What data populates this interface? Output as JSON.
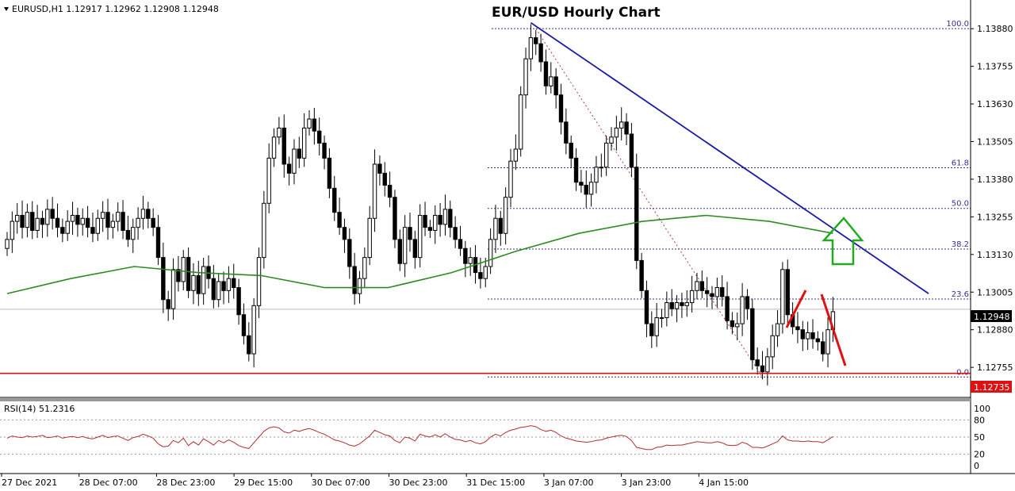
{
  "header": {
    "symbol_line": "EURUSD,H1  1.12917  1.12962  1.12908  1.12948",
    "triangle_icon": "triangle-down-icon"
  },
  "annotation_title": "EUR/USD Hourly Chart",
  "rsi_label": "RSI(14) 51.2316",
  "colors": {
    "candle": "#000000",
    "moving_average": "#2e8b22",
    "trendline": "#1a1aa8",
    "support_line": "#dd1111",
    "fib_line": "#33338a",
    "rsi_line": "#b03030",
    "up_arrow": "#22aa22",
    "red_path": "#dd1111"
  },
  "chart_data": [
    {
      "type": "candlestick",
      "title": "EUR/USD Hourly Chart",
      "symbol": "EURUSD",
      "timeframe": "H1",
      "ohlc_current": {
        "open": 1.12917,
        "high": 1.12962,
        "low": 1.12908,
        "close": 1.12948
      },
      "ylim": [
        1.127,
        1.1392
      ],
      "y_ticks": [
        "1.13880",
        "1.13755",
        "1.13630",
        "1.13505",
        "1.13380",
        "1.13255",
        "1.13130",
        "1.13005",
        "1.12880",
        "1.12755"
      ],
      "x_tick_labels": [
        "27 Dec 2021",
        "28 Dec 07:00",
        "28 Dec 23:00",
        "29 Dec 15:00",
        "30 Dec 07:00",
        "30 Dec 23:00",
        "31 Dec 15:00",
        "3 Jan 07:00",
        "3 Jan 23:00",
        "4 Jan 15:00"
      ],
      "current_price_label": "1.12948",
      "support_price_label": "1.12735",
      "close_series": [
        1.1318,
        1.1324,
        1.1326,
        1.1322,
        1.1327,
        1.1321,
        1.1325,
        1.1323,
        1.1328,
        1.1325,
        1.1322,
        1.132,
        1.1324,
        1.1326,
        1.1323,
        1.1325,
        1.1322,
        1.132,
        1.1325,
        1.1327,
        1.1322,
        1.1324,
        1.1327,
        1.1321,
        1.1318,
        1.1322,
        1.1325,
        1.1328,
        1.1325,
        1.1322,
        1.1312,
        1.1298,
        1.1295,
        1.1308,
        1.1304,
        1.1312,
        1.1301,
        1.1306,
        1.13,
        1.1309,
        1.1305,
        1.1298,
        1.1304,
        1.1301,
        1.1305,
        1.1302,
        1.1293,
        1.1286,
        1.128,
        1.1296,
        1.1312,
        1.133,
        1.1345,
        1.1352,
        1.1355,
        1.1343,
        1.134,
        1.1348,
        1.1345,
        1.1355,
        1.1358,
        1.1354,
        1.135,
        1.1345,
        1.1335,
        1.1327,
        1.1322,
        1.1318,
        1.1309,
        1.13,
        1.1305,
        1.1312,
        1.1325,
        1.1343,
        1.134,
        1.1336,
        1.1332,
        1.1318,
        1.131,
        1.1322,
        1.1318,
        1.1312,
        1.1326,
        1.1322,
        1.1321,
        1.1326,
        1.1323,
        1.1328,
        1.1322,
        1.1318,
        1.1315,
        1.131,
        1.1312,
        1.1307,
        1.1305,
        1.1309,
        1.1318,
        1.1325,
        1.132,
        1.1332,
        1.1344,
        1.1348,
        1.1366,
        1.1378,
        1.1385,
        1.1383,
        1.1377,
        1.1369,
        1.1372,
        1.1366,
        1.1357,
        1.135,
        1.1345,
        1.1337,
        1.1336,
        1.1333,
        1.1337,
        1.1342,
        1.1342,
        1.135,
        1.1352,
        1.1355,
        1.1357,
        1.1353,
        1.1342,
        1.1311,
        1.1301,
        1.129,
        1.1286,
        1.1292,
        1.1292,
        1.1297,
        1.1295,
        1.1297,
        1.1296,
        1.1297,
        1.1301,
        1.1304,
        1.1301,
        1.13,
        1.1299,
        1.1302,
        1.1299,
        1.1291,
        1.1289,
        1.129,
        1.1299,
        1.1295,
        1.1278,
        1.1276,
        1.1274,
        1.1279,
        1.1286,
        1.129,
        1.1308,
        1.1293,
        1.1289,
        1.1288,
        1.1285,
        1.1287,
        1.1285,
        1.1284,
        1.128,
        1.1288,
        1.1294
      ],
      "moving_average_series": [
        1.13,
        1.1305,
        1.1309,
        1.1307,
        1.1306,
        1.1302,
        1.1302,
        1.1307,
        1.1314,
        1.132,
        1.1324,
        1.1326,
        1.1324,
        1.132
      ],
      "trendline": {
        "start": [
          104,
          1.139
        ],
        "end": [
          183,
          1.13
        ]
      },
      "fibonacci": [
        {
          "level": "100.0",
          "price": 1.1388
        },
        {
          "level": "61.8",
          "price": 1.13418
        },
        {
          "level": "50.0",
          "price": 1.13283
        },
        {
          "level": "38.2",
          "price": 1.13148
        },
        {
          "level": "23.6",
          "price": 1.12982
        },
        {
          "level": "0.0",
          "price": 1.12723
        }
      ]
    },
    {
      "type": "line",
      "title": "RSI(14) 51.2316",
      "ylim": [
        0,
        100
      ],
      "y_ticks": [
        "100",
        "80",
        "50",
        "20",
        "0"
      ],
      "values": [
        48,
        52,
        50,
        49,
        52,
        50,
        51,
        53,
        49,
        50,
        52,
        48,
        50,
        51,
        49,
        51,
        48,
        47,
        50,
        53,
        49,
        51,
        52,
        48,
        44,
        49,
        51,
        55,
        52,
        48,
        38,
        33,
        34,
        44,
        40,
        48,
        35,
        42,
        36,
        47,
        42,
        36,
        44,
        40,
        45,
        41,
        35,
        32,
        30,
        40,
        50,
        60,
        66,
        68,
        66,
        59,
        57,
        62,
        60,
        63,
        65,
        62,
        58,
        55,
        50,
        45,
        43,
        40,
        36,
        34,
        38,
        45,
        52,
        62,
        58,
        54,
        52,
        44,
        40,
        50,
        48,
        43,
        55,
        52,
        50,
        54,
        50,
        56,
        50,
        46,
        45,
        42,
        44,
        40,
        38,
        42,
        50,
        55,
        52,
        58,
        62,
        64,
        67,
        68,
        70,
        68,
        63,
        60,
        62,
        58,
        52,
        48,
        46,
        43,
        42,
        41,
        42,
        44,
        45,
        48,
        50,
        52,
        53,
        51,
        44,
        32,
        30,
        28,
        28,
        32,
        33,
        36,
        35,
        36,
        36,
        38,
        40,
        42,
        41,
        40,
        40,
        42,
        40,
        36,
        35,
        36,
        41,
        38,
        32,
        32,
        31,
        34,
        38,
        42,
        52,
        45,
        43,
        43,
        42,
        43,
        42,
        42,
        40,
        45,
        51
      ]
    }
  ]
}
